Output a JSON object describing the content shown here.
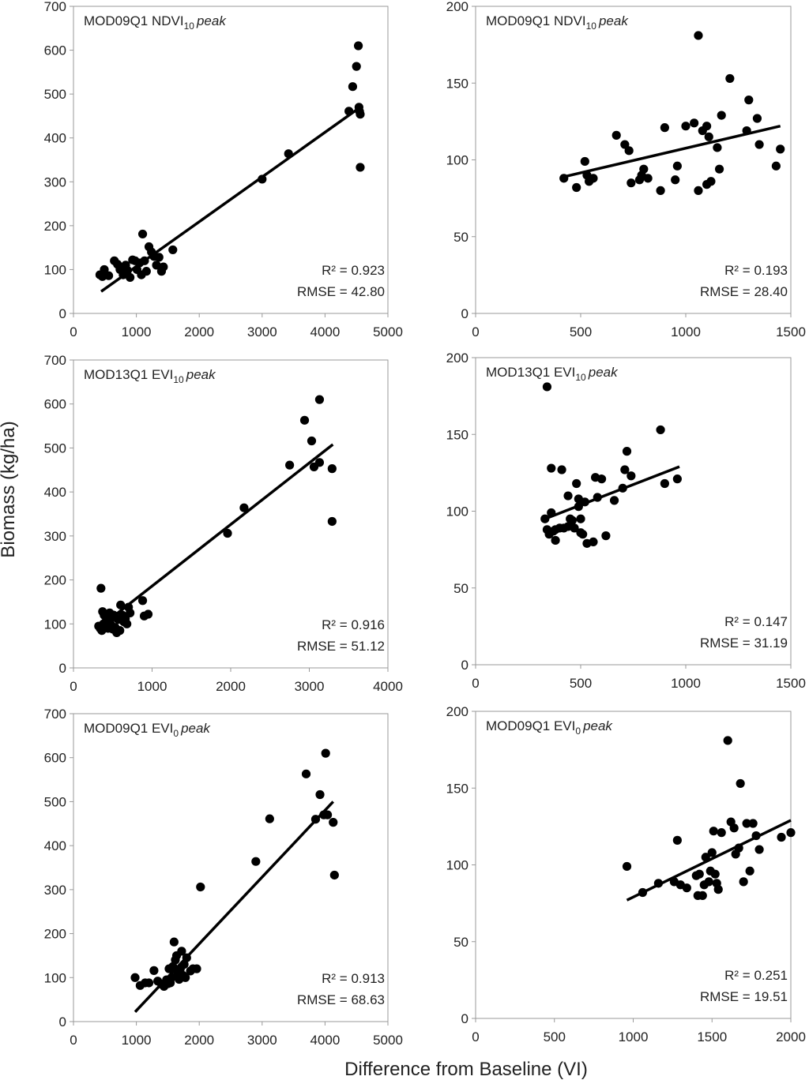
{
  "figure": {
    "ylabel": "Biomass (kg/ha)",
    "xlabel": "Difference from Baseline (VI)"
  },
  "chart_data": [
    {
      "type": "scatter",
      "title": {
        "base": "MOD09Q1 NDVI",
        "sub": "10",
        "italic": "peak"
      },
      "xlim": [
        0,
        5000
      ],
      "ylim": [
        0,
        700
      ],
      "xticks": [
        "0",
        "1000",
        "2000",
        "3000",
        "4000",
        "5000"
      ],
      "yticks": [
        "0",
        "100",
        "200",
        "300",
        "400",
        "500",
        "600",
        "700"
      ],
      "r2": "R² = 0.923",
      "rmse": "RMSE = 42.80",
      "trend": [
        [
          440,
          50
        ],
        [
          4560,
          470
        ]
      ],
      "x": [
        420,
        460,
        490,
        510,
        560,
        650,
        700,
        740,
        790,
        830,
        860,
        900,
        940,
        980,
        1010,
        1050,
        1080,
        1100,
        1130,
        1160,
        1200,
        1240,
        1280,
        1320,
        1360,
        1400,
        1430,
        1580,
        3000,
        3420,
        4380,
        4440,
        4500,
        4530,
        4540,
        4560,
        4560,
        4550
      ],
      "y": [
        88,
        84,
        100,
        88,
        86,
        120,
        112,
        100,
        88,
        110,
        98,
        82,
        122,
        120,
        100,
        115,
        88,
        181,
        120,
        96,
        152,
        140,
        130,
        110,
        128,
        96,
        106,
        145,
        306,
        364,
        461,
        517,
        563,
        610,
        470,
        454,
        333,
        460
      ]
    },
    {
      "type": "scatter",
      "title": {
        "base": "MOD09Q1 NDVI",
        "sub": "10",
        "italic": "peak"
      },
      "xlim": [
        0,
        1500
      ],
      "ylim": [
        0,
        200
      ],
      "xticks": [
        "0",
        "500",
        "1000",
        "1500"
      ],
      "yticks": [
        "0",
        "50",
        "100",
        "150",
        "200"
      ],
      "r2": "R² = 0.193",
      "rmse": "RMSE = 28.40",
      "trend": [
        [
          420,
          89
        ],
        [
          1450,
          122
        ]
      ],
      "x": [
        420,
        480,
        520,
        530,
        540,
        560,
        670,
        710,
        730,
        740,
        780,
        790,
        800,
        820,
        880,
        900,
        950,
        960,
        1000,
        1040,
        1060,
        1060,
        1080,
        1100,
        1100,
        1110,
        1120,
        1150,
        1160,
        1170,
        1210,
        1290,
        1300,
        1340,
        1350,
        1430,
        1450
      ],
      "y": [
        88,
        82,
        99,
        90,
        86,
        88,
        116,
        110,
        106,
        85,
        87,
        90,
        94,
        88,
        80,
        121,
        87,
        96,
        122,
        124,
        80,
        181,
        119,
        84,
        122,
        115,
        86,
        108,
        94,
        129,
        153,
        119,
        139,
        127,
        110,
        96,
        107
      ]
    },
    {
      "type": "scatter",
      "title": {
        "base": "MOD13Q1 EVI",
        "sub": "10",
        "italic": "peak"
      },
      "xlim": [
        0,
        4000
      ],
      "ylim": [
        0,
        700
      ],
      "xticks": [
        "0",
        "1000",
        "2000",
        "3000",
        "4000"
      ],
      "yticks": [
        "0",
        "100",
        "200",
        "300",
        "400",
        "500",
        "600",
        "700"
      ],
      "r2": "R² = 0.916",
      "rmse": "RMSE = 51.12",
      "trend": [
        [
          350,
          95
        ],
        [
          3300,
          508
        ]
      ],
      "x": [
        320,
        340,
        350,
        360,
        370,
        380,
        390,
        400,
        420,
        440,
        460,
        470,
        490,
        500,
        510,
        530,
        550,
        570,
        590,
        600,
        620,
        640,
        660,
        680,
        700,
        720,
        880,
        900,
        950,
        1960,
        2170,
        2750,
        2940,
        3030,
        3060,
        3130,
        3130,
        3290,
        3290
      ],
      "y": [
        95,
        90,
        181,
        85,
        128,
        100,
        120,
        95,
        110,
        90,
        125,
        100,
        115,
        88,
        120,
        92,
        80,
        110,
        85,
        143,
        120,
        105,
        112,
        100,
        138,
        125,
        153,
        118,
        122,
        306,
        364,
        461,
        563,
        516,
        457,
        610,
        467,
        453,
        333
      ]
    },
    {
      "type": "scatter",
      "title": {
        "base": "MOD13Q1 EVI",
        "sub": "10",
        "italic": "peak"
      },
      "xlim": [
        0,
        1500
      ],
      "ylim": [
        0,
        200
      ],
      "xticks": [
        "0",
        "500",
        "1000",
        "1500"
      ],
      "yticks": [
        "0",
        "50",
        "100",
        "150",
        "200"
      ],
      "r2": "R² = 0.147",
      "rmse": "RMSE = 31.19",
      "trend": [
        [
          330,
          95
        ],
        [
          970,
          129
        ]
      ],
      "x": [
        330,
        340,
        340,
        350,
        360,
        360,
        370,
        380,
        380,
        400,
        410,
        420,
        440,
        440,
        450,
        460,
        470,
        480,
        490,
        490,
        500,
        500,
        510,
        520,
        530,
        560,
        570,
        580,
        600,
        620,
        660,
        700,
        710,
        720,
        740,
        880,
        900,
        960
      ],
      "y": [
        95,
        88,
        181,
        85,
        99,
        128,
        87,
        81,
        88,
        89,
        127,
        89,
        110,
        90,
        95,
        94,
        89,
        118,
        103,
        108,
        86,
        95,
        85,
        106,
        79,
        80,
        122,
        109,
        121,
        84,
        107,
        115,
        127,
        139,
        123,
        153,
        118,
        121
      ]
    },
    {
      "type": "scatter",
      "title": {
        "base": "MOD09Q1 EVI",
        "sub": "0",
        "italic": "peak"
      },
      "xlim": [
        0,
        5000
      ],
      "ylim": [
        0,
        700
      ],
      "xticks": [
        "0",
        "1000",
        "2000",
        "3000",
        "4000",
        "5000"
      ],
      "yticks": [
        "0",
        "100",
        "200",
        "300",
        "400",
        "500",
        "600",
        "700"
      ],
      "r2": "R² = 0.913",
      "rmse": "RMSE = 68.63",
      "trend": [
        [
          980,
          22
        ],
        [
          4130,
          500
        ]
      ],
      "x": [
        980,
        1060,
        1140,
        1200,
        1280,
        1340,
        1400,
        1440,
        1480,
        1500,
        1520,
        1540,
        1560,
        1580,
        1600,
        1620,
        1640,
        1660,
        1680,
        1700,
        1720,
        1740,
        1760,
        1780,
        1800,
        1860,
        1900,
        1960,
        2020,
        2900,
        3120,
        3700,
        3850,
        3920,
        3980,
        4010,
        4040,
        4130,
        4150
      ],
      "y": [
        100,
        82,
        88,
        88,
        116,
        92,
        85,
        80,
        95,
        86,
        120,
        88,
        100,
        125,
        181,
        140,
        150,
        110,
        96,
        120,
        160,
        105,
        130,
        100,
        145,
        115,
        120,
        120,
        306,
        364,
        461,
        563,
        460,
        516,
        470,
        610,
        470,
        453,
        333
      ]
    },
    {
      "type": "scatter",
      "title": {
        "base": "MOD09Q1 EVI",
        "sub": "0",
        "italic": "peak"
      },
      "xlim": [
        0,
        2000
      ],
      "ylim": [
        0,
        200
      ],
      "xticks": [
        "0",
        "500",
        "1000",
        "1500",
        "2000"
      ],
      "yticks": [
        "0",
        "50",
        "100",
        "150",
        "200"
      ],
      "r2": "R² = 0.251",
      "rmse": "RMSE = 19.51",
      "trend": [
        [
          960,
          77
        ],
        [
          2000,
          129
        ]
      ],
      "x": [
        960,
        1060,
        1160,
        1260,
        1280,
        1300,
        1340,
        1400,
        1410,
        1420,
        1440,
        1450,
        1460,
        1480,
        1490,
        1500,
        1510,
        1520,
        1530,
        1540,
        1560,
        1600,
        1620,
        1640,
        1650,
        1670,
        1680,
        1700,
        1720,
        1740,
        1760,
        1780,
        1800,
        1940,
        2000
      ],
      "y": [
        99,
        82,
        88,
        89,
        116,
        87,
        85,
        93,
        80,
        94,
        80,
        87,
        105,
        89,
        96,
        108,
        122,
        94,
        88,
        84,
        121,
        181,
        128,
        124,
        107,
        111,
        153,
        89,
        127,
        96,
        127,
        119,
        110,
        118,
        121
      ]
    }
  ]
}
